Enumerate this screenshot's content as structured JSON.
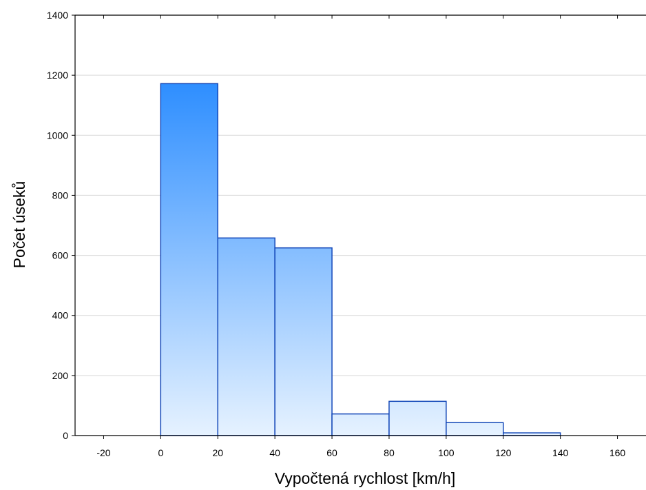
{
  "chart_data": {
    "type": "bar",
    "subtype": "histogram",
    "xlabel": "Vypočtená rychlost [km/h]",
    "ylabel": "Počet úseků",
    "xlim": [
      -30,
      170
    ],
    "ylim": [
      0,
      1400
    ],
    "xticks": [
      -20,
      0,
      20,
      40,
      60,
      80,
      100,
      120,
      140,
      160
    ],
    "yticks": [
      0,
      200,
      400,
      600,
      800,
      1000,
      1200,
      1400
    ],
    "grid": true,
    "bins": [
      {
        "x0": 0,
        "x1": 20,
        "value": 1172
      },
      {
        "x0": 20,
        "x1": 40,
        "value": 658
      },
      {
        "x0": 40,
        "x1": 60,
        "value": 625
      },
      {
        "x0": 60,
        "x1": 80,
        "value": 72
      },
      {
        "x0": 80,
        "x1": 100,
        "value": 114
      },
      {
        "x0": 100,
        "x1": 120,
        "value": 43
      },
      {
        "x0": 120,
        "x1": 140,
        "value": 9
      }
    ],
    "colors": {
      "bar_top": "#2a8cff",
      "bar_bottom": "#e6f2ff",
      "bar_edge": "#1448b8",
      "grid": "#d9d9d9",
      "axis": "#000000"
    }
  }
}
